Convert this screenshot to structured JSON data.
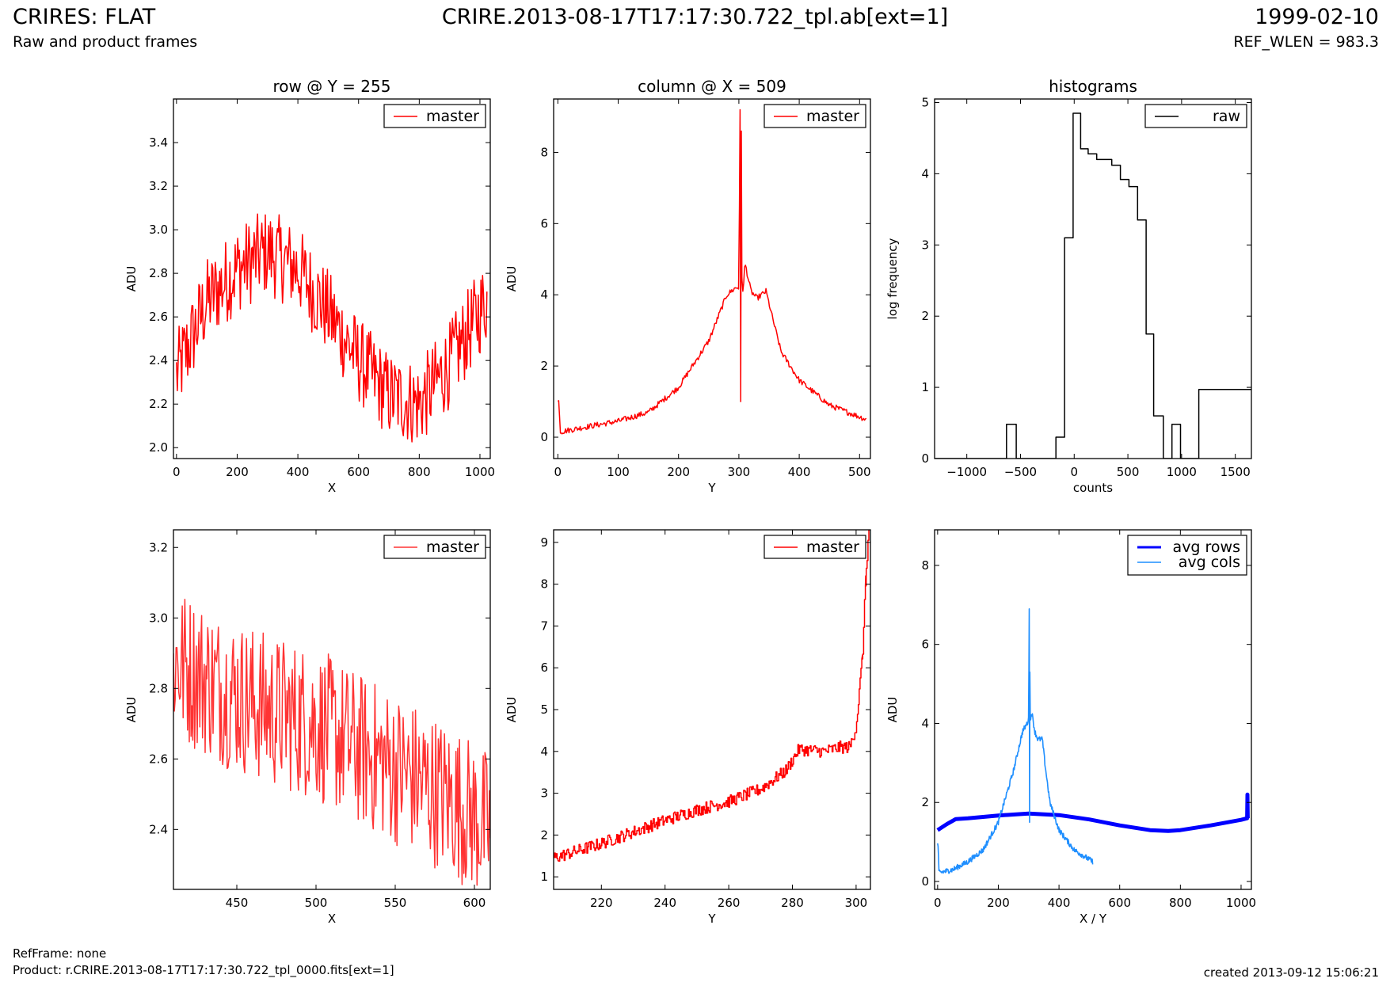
{
  "header": {
    "title": "CRIRES: FLAT",
    "subtitle": "Raw and product frames",
    "file": "CRIRE.2013-08-17T17:17:30.722_tpl.ab[ext=1]",
    "date": "1999-02-10",
    "ref_wlen": "REF_WLEN = 983.3"
  },
  "footer": {
    "ref_frame": "RefFrame: none",
    "product": "Product: r.CRIRE.2013-08-17T17:17:30.722_tpl_0000.fits[ext=1]",
    "created": "created 2013-09-12 15:06:21"
  },
  "colors": {
    "red": "#ff0000",
    "red_light": "#ff3333",
    "black": "#000000",
    "blue": "#0000ff",
    "sky": "#1f8fff"
  },
  "chart_data": [
    {
      "id": "row",
      "type": "line",
      "title": "row @ Y = 255",
      "xlabel": "X",
      "ylabel": "ADU",
      "xlim": [
        -10,
        1034
      ],
      "ylim": [
        1.95,
        3.6
      ],
      "xticks": [
        0,
        200,
        400,
        600,
        800,
        1000
      ],
      "yticks": [
        2.0,
        2.2,
        2.4,
        2.6,
        2.8,
        3.0,
        3.2,
        3.4
      ],
      "ytick_labels": [
        "2.0",
        "2.2",
        "2.4",
        "2.6",
        "2.8",
        "3.0",
        "3.2",
        "3.4"
      ],
      "legend": "top-right",
      "series": [
        {
          "name": "master",
          "color": "#ff0000",
          "noise": 0.2,
          "x": [
            0,
            100,
            200,
            300,
            400,
            500,
            600,
            700,
            800,
            900,
            1023
          ],
          "y": [
            2.33,
            2.67,
            2.82,
            2.9,
            2.82,
            2.62,
            2.4,
            2.24,
            2.2,
            2.38,
            2.68
          ]
        }
      ]
    },
    {
      "id": "column",
      "type": "line",
      "title": "column @ X = 509",
      "xlabel": "Y",
      "ylabel": "ADU",
      "xlim": [
        -7,
        518
      ],
      "ylim": [
        -0.6,
        9.5
      ],
      "xticks": [
        0,
        100,
        200,
        300,
        400,
        500
      ],
      "yticks": [
        0,
        2,
        4,
        6,
        8
      ],
      "legend": "top-right",
      "series": [
        {
          "name": "master",
          "color": "#ff0000",
          "noise": 0.08,
          "x": [
            0,
            2,
            4,
            50,
            100,
            150,
            200,
            250,
            280,
            295,
            300,
            302,
            303,
            304,
            305,
            306,
            308,
            310,
            320,
            330,
            345,
            355,
            370,
            400,
            450,
            511
          ],
          "y": [
            1.0,
            1.0,
            0.15,
            0.3,
            0.45,
            0.7,
            1.4,
            2.7,
            4.0,
            4.2,
            4.2,
            9.2,
            1.0,
            8.6,
            4.5,
            4.1,
            4.3,
            4.9,
            4.1,
            3.9,
            4.1,
            3.4,
            2.4,
            1.6,
            0.9,
            0.5
          ]
        }
      ]
    },
    {
      "id": "histograms",
      "type": "line",
      "title": "histograms",
      "xlabel": "counts",
      "ylabel": "log frequency",
      "xlim": [
        -1300,
        1650
      ],
      "ylim": [
        0,
        5.05
      ],
      "xticks": [
        -1000,
        -500,
        0,
        500,
        1000,
        1500
      ],
      "yticks": [
        0,
        1,
        2,
        3,
        4,
        5
      ],
      "xtick_labels": [
        "−1000",
        "−500",
        "0",
        "500",
        "1000",
        "1500"
      ],
      "legend": "top-right",
      "step": true,
      "series": [
        {
          "name": "raw",
          "color": "#000000",
          "x": [
            -1300,
            -630,
            -630,
            -540,
            -540,
            -170,
            -170,
            -90,
            -90,
            -10,
            -10,
            60,
            60,
            130,
            130,
            210,
            210,
            350,
            350,
            430,
            430,
            510,
            510,
            590,
            590,
            670,
            670,
            740,
            740,
            830,
            830,
            910,
            910,
            990,
            990,
            1160,
            1160,
            1560,
            1560,
            1650
          ],
          "y": [
            0,
            0,
            0.48,
            0.48,
            0,
            0,
            0.3,
            0.3,
            3.1,
            3.1,
            4.85,
            4.85,
            4.35,
            4.35,
            4.28,
            4.28,
            4.2,
            4.2,
            4.12,
            4.12,
            3.92,
            3.92,
            3.82,
            3.82,
            3.35,
            3.35,
            1.75,
            1.75,
            0.6,
            0.6,
            0,
            0,
            0.48,
            0.48,
            0,
            0,
            0.97,
            0.97,
            0.97,
            0.97
          ]
        }
      ]
    },
    {
      "id": "row-zoom",
      "type": "line",
      "title": "",
      "xlabel": "X",
      "ylabel": "ADU",
      "xlim": [
        410,
        610
      ],
      "ylim": [
        2.23,
        3.25
      ],
      "xticks": [
        450,
        500,
        550,
        600
      ],
      "yticks": [
        2.4,
        2.6,
        2.8,
        3.0,
        3.2
      ],
      "ytick_labels": [
        "2.4",
        "2.6",
        "2.8",
        "3.0",
        "3.2"
      ],
      "legend": "top-right",
      "series": [
        {
          "name": "master",
          "color": "#ff3333",
          "noise": 0.22,
          "x": [
            410,
            440,
            470,
            500,
            530,
            560,
            590,
            610
          ],
          "y": [
            2.88,
            2.8,
            2.74,
            2.7,
            2.62,
            2.55,
            2.47,
            2.4
          ]
        }
      ]
    },
    {
      "id": "column-zoom",
      "type": "line",
      "title": "",
      "xlabel": "Y",
      "ylabel": "ADU",
      "xlim": [
        205,
        304.5
      ],
      "ylim": [
        0.7,
        9.3
      ],
      "xticks": [
        220,
        240,
        260,
        280,
        300
      ],
      "yticks": [
        1,
        2,
        3,
        4,
        5,
        6,
        7,
        8,
        9
      ],
      "legend": "top-right",
      "step": true,
      "series": [
        {
          "name": "master",
          "color": "#ff0000",
          "noise": 0.15,
          "x": [
            205,
            220,
            240,
            250,
            260,
            270,
            278,
            282,
            290,
            295,
            298,
            300,
            302,
            303,
            304
          ],
          "y": [
            1.45,
            1.8,
            2.35,
            2.6,
            2.8,
            3.1,
            3.55,
            4.05,
            4.0,
            4.1,
            4.1,
            4.6,
            6.3,
            8.2,
            9.3
          ]
        }
      ]
    },
    {
      "id": "avg",
      "type": "line",
      "title": "",
      "xlabel": "X / Y",
      "ylabel": "ADU",
      "xlim": [
        -10,
        1034
      ],
      "ylim": [
        -0.2,
        8.9
      ],
      "xticks": [
        0,
        200,
        400,
        600,
        800,
        1000
      ],
      "yticks": [
        0,
        2,
        4,
        6,
        8
      ],
      "legend": "top-right",
      "series": [
        {
          "name": "avg rows",
          "color": "#0000ff",
          "width": 5,
          "x": [
            0,
            30,
            60,
            100,
            200,
            300,
            400,
            500,
            600,
            700,
            760,
            800,
            900,
            1000,
            1020,
            1021,
            1022
          ],
          "y": [
            1.3,
            1.45,
            1.58,
            1.6,
            1.67,
            1.72,
            1.68,
            1.57,
            1.42,
            1.3,
            1.28,
            1.3,
            1.42,
            1.56,
            1.6,
            2.2,
            1.6
          ]
        },
        {
          "name": "avg cols",
          "color": "#1f8fff",
          "width": 1.6,
          "noise": 0.07,
          "x": [
            0,
            2,
            4,
            50,
            100,
            150,
            200,
            250,
            280,
            295,
            300,
            302,
            303,
            304,
            305,
            306,
            308,
            310,
            320,
            330,
            345,
            355,
            370,
            400,
            450,
            511
          ],
          "y": [
            0.95,
            0.9,
            0.22,
            0.3,
            0.5,
            0.8,
            1.5,
            2.8,
            3.8,
            4.0,
            4.1,
            6.9,
            1.5,
            5.3,
            4.3,
            4.0,
            4.2,
            4.3,
            3.8,
            3.6,
            3.6,
            2.9,
            2.0,
            1.3,
            0.8,
            0.5
          ]
        }
      ]
    }
  ]
}
